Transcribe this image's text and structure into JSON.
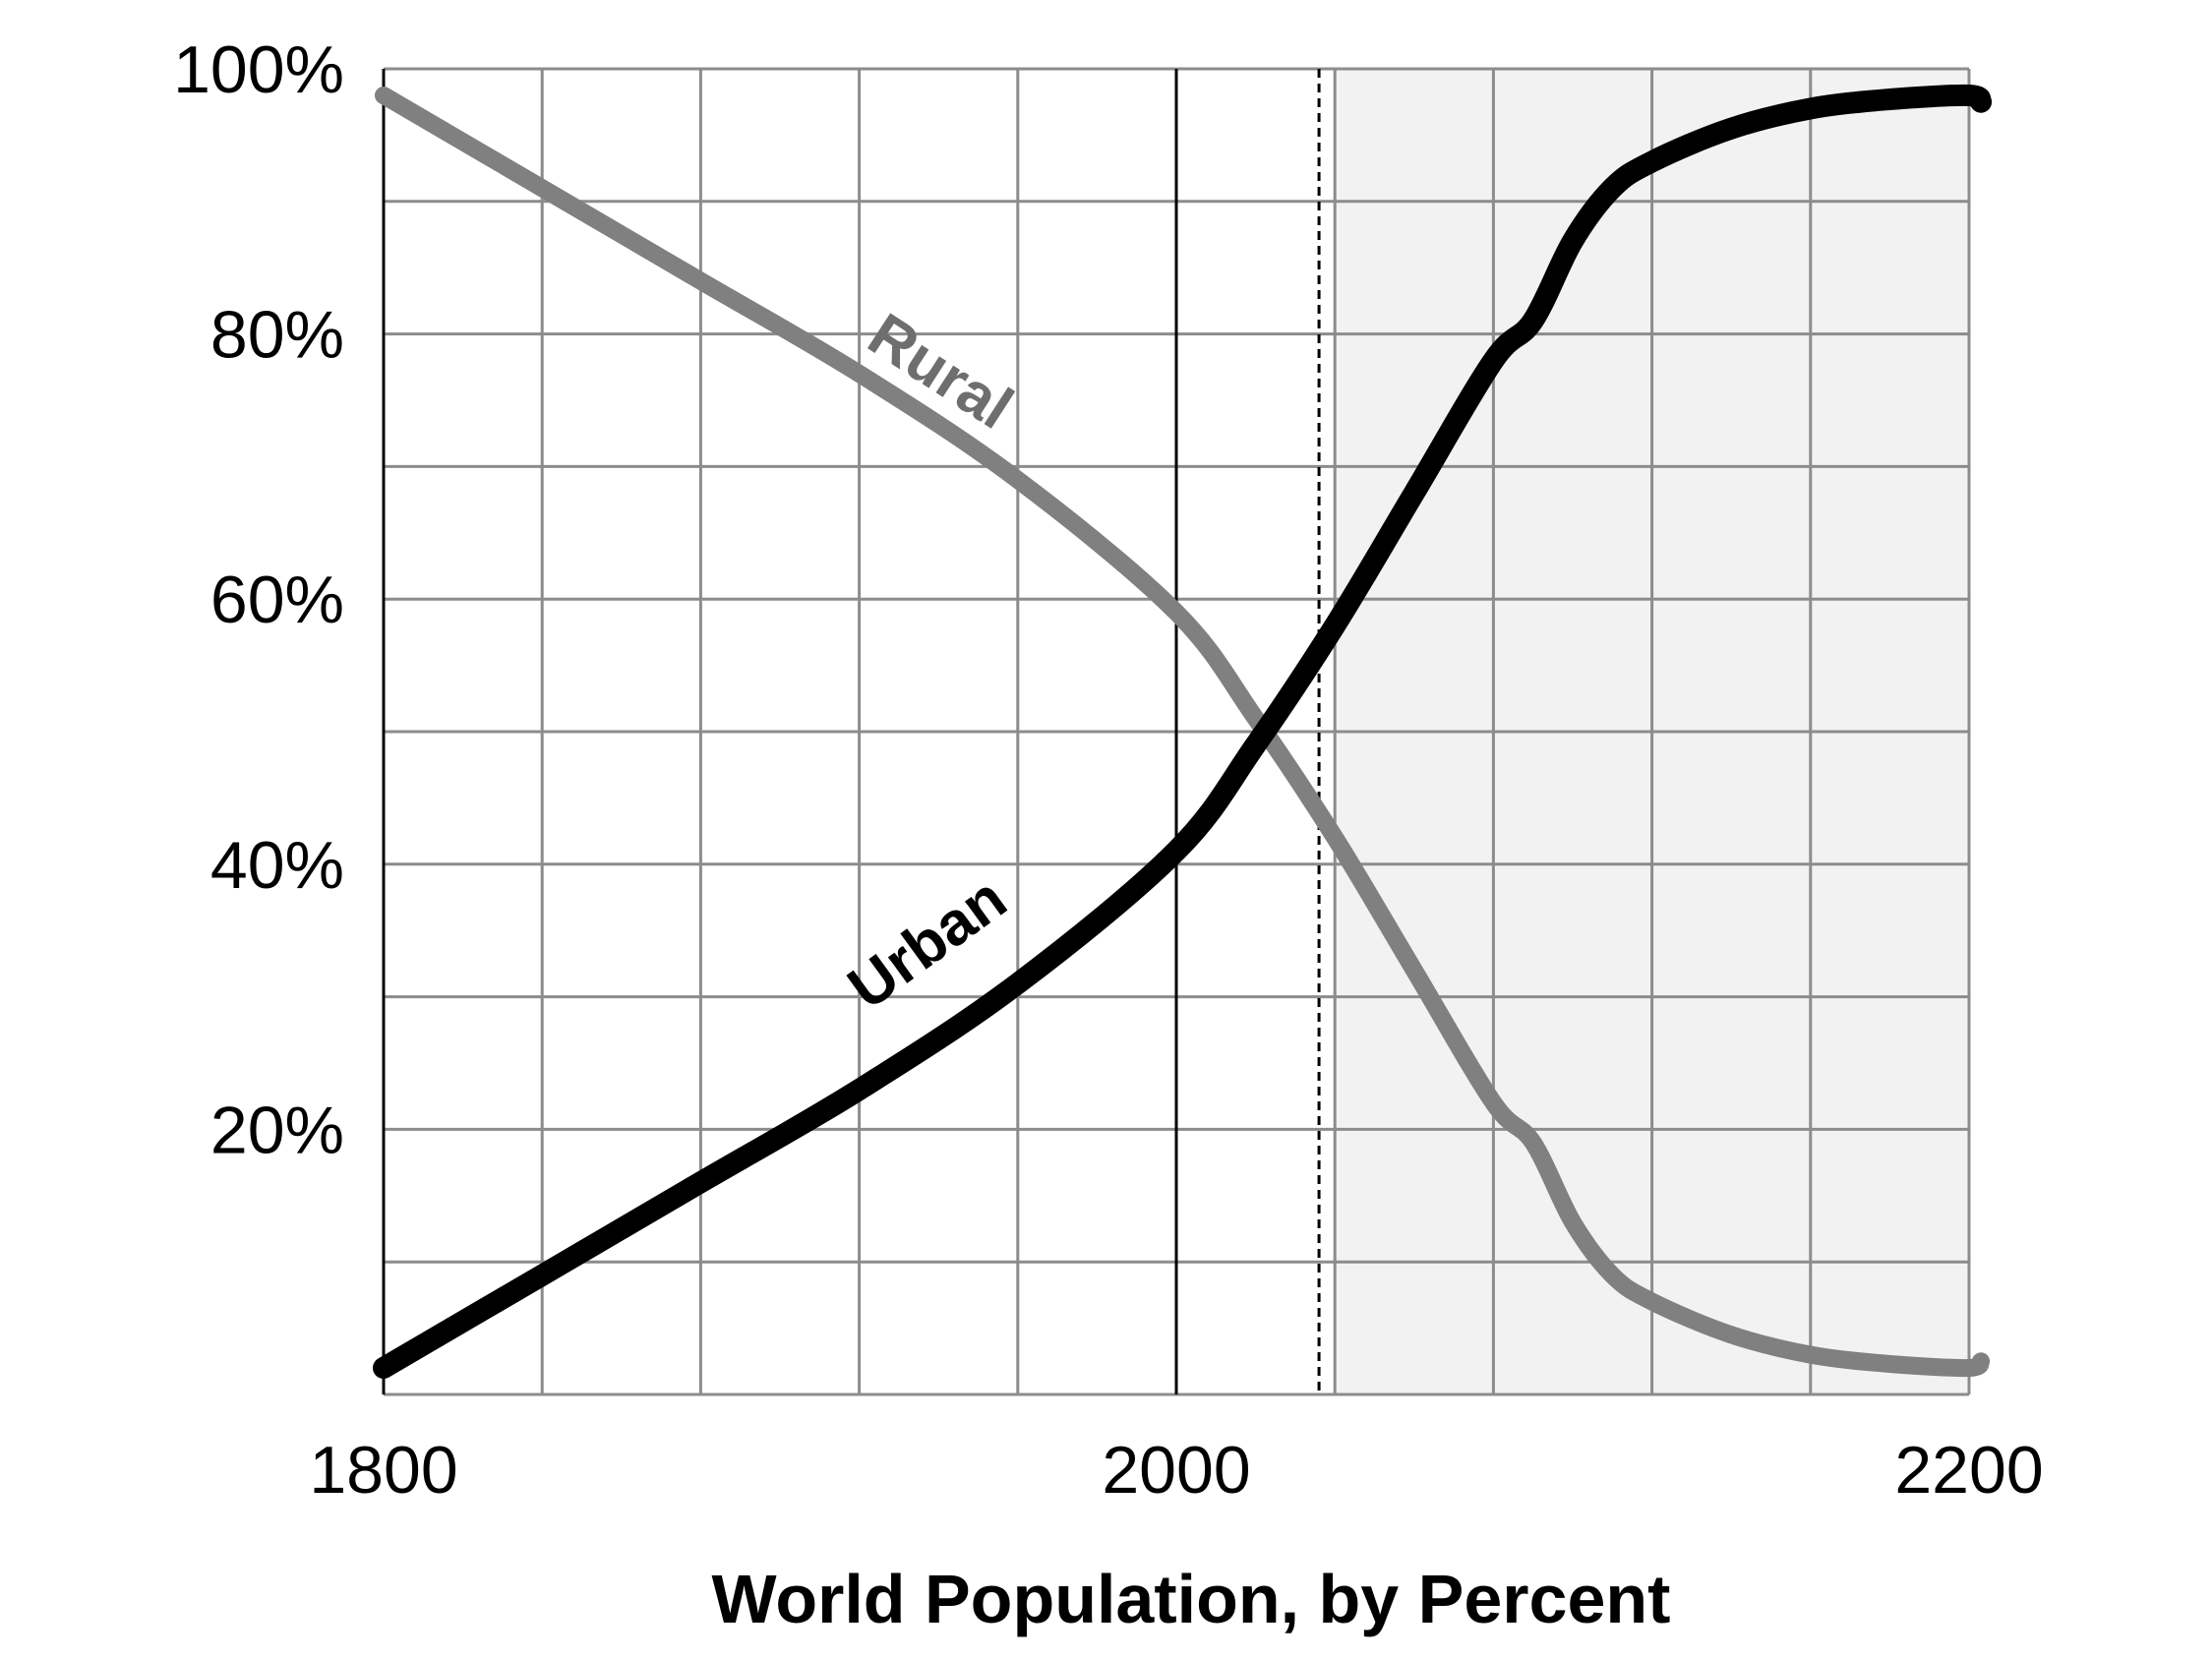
{
  "chart_data": {
    "type": "line",
    "title": "",
    "xlabel": "World Population, by Percent",
    "ylabel": "",
    "xlim": [
      1800,
      2200
    ],
    "ylim": [
      0,
      100
    ],
    "x_ticks": [
      1800,
      2000,
      2200
    ],
    "x_tick_labels": [
      "1800",
      "2000",
      "2200"
    ],
    "y_ticks": [
      20,
      40,
      60,
      80,
      100
    ],
    "y_tick_labels": [
      "20%",
      "40%",
      "60%",
      "80%",
      "100%"
    ],
    "grid": true,
    "x_gridline_step": 40,
    "y_gridline_step": 10,
    "reference_line": {
      "x": 2036,
      "style": "dashed"
    },
    "projection_shaded_from": 2040,
    "series": [
      {
        "name": "Urban",
        "color": "#000000",
        "x": [
          1800,
          1840,
          1880,
          1920,
          1960,
          2000,
          2020,
          2040,
          2060,
          2080,
          2090,
          2100,
          2110,
          2120,
          2140,
          2160,
          2180,
          2200,
          2203
        ],
        "values": [
          2,
          9,
          16,
          23,
          31,
          41,
          49,
          58,
          68,
          78,
          81,
          87,
          91,
          93,
          95.5,
          97,
          97.7,
          98,
          97.5
        ]
      },
      {
        "name": "Rural",
        "color": "#808080",
        "x": [
          1800,
          1840,
          1880,
          1920,
          1960,
          2000,
          2020,
          2040,
          2060,
          2080,
          2090,
          2100,
          2110,
          2120,
          2140,
          2160,
          2180,
          2200,
          2203
        ],
        "values": [
          98,
          91,
          84,
          77,
          69,
          59,
          51,
          42,
          32,
          22,
          19,
          13,
          9,
          7,
          4.5,
          3,
          2.3,
          2,
          2.5
        ]
      }
    ]
  }
}
